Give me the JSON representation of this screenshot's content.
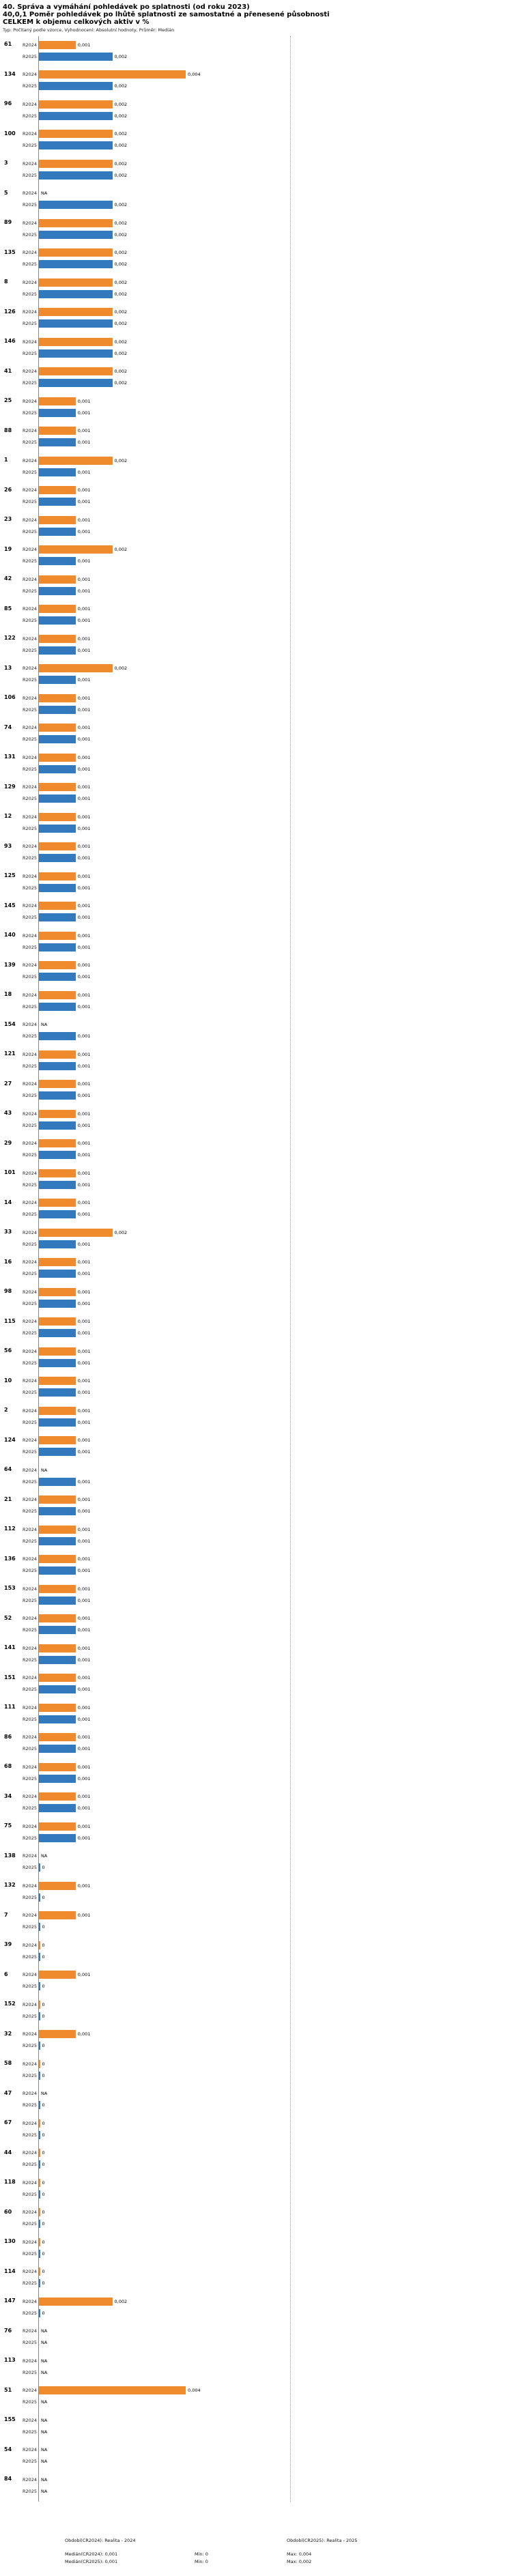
{
  "header": {
    "title_line1": "40. Správa a vymáhání pohledávek po splatnosti (od roku 2023)",
    "title_line2": "40,0,1 Poměr pohledávek po lhůtě splatnosti ze samostatné a přenesené působnosti",
    "title_line3": "CELKEM k objemu celkových aktiv v %",
    "subtitle": "Typ: Počítaný podle vzorce, Vyhodnocení: Absolutní hodnoty, Průměr: Medián"
  },
  "legend": {
    "period_2024": "Období(CR2024): Realita - 2024",
    "period_2025": "Období(CR2025): Realita - 2025",
    "median_2024_label": "Medián(CR2024): 0,001",
    "median_2025_label": "Medián(CR2025): 0,001",
    "min_2024": "Min: 0",
    "max_2024": "Max: 0,004",
    "min_2025": "Min: 0",
    "max_2025": "Max: 0,002"
  },
  "chart_data": {
    "type": "bar",
    "orientation": "horizontal",
    "title": "40. Správa a vymáhání pohledávek po splatnosti (od roku 2023)",
    "ylabel": "CELKEM k objemu celkových aktiv v %",
    "series": [
      "R2024",
      "R2025"
    ],
    "colors": {
      "R2024": "#EF8B2C",
      "R2025": "#3379BE"
    },
    "x_max": 0.004,
    "median_R2024": 0.001,
    "median_R2025": 0.001,
    "min_R2024": 0,
    "max_R2024": 0.004,
    "min_R2025": 0,
    "max_R2025": 0.002,
    "groups": [
      {
        "id": "61",
        "R2024": "0,001",
        "R2025": "0,002"
      },
      {
        "id": "134",
        "R2024": "0,004",
        "R2025": "0,002"
      },
      {
        "id": "96",
        "R2024": "0,002",
        "R2025": "0,002"
      },
      {
        "id": "100",
        "R2024": "0,002",
        "R2025": "0,002"
      },
      {
        "id": "3",
        "R2024": "0,002",
        "R2025": "0,002"
      },
      {
        "id": "5",
        "R2024": "NA",
        "R2025": "0,002"
      },
      {
        "id": "89",
        "R2024": "0,002",
        "R2025": "0,002"
      },
      {
        "id": "135",
        "R2024": "0,002",
        "R2025": "0,002"
      },
      {
        "id": "8",
        "R2024": "0,002",
        "R2025": "0,002"
      },
      {
        "id": "126",
        "R2024": "0,002",
        "R2025": "0,002"
      },
      {
        "id": "146",
        "R2024": "0,002",
        "R2025": "0,002"
      },
      {
        "id": "41",
        "R2024": "0,002",
        "R2025": "0,002"
      },
      {
        "id": "25",
        "R2024": "0,001",
        "R2025": "0,001"
      },
      {
        "id": "88",
        "R2024": "0,001",
        "R2025": "0,001"
      },
      {
        "id": "1",
        "R2024": "0,002",
        "R2025": "0,001"
      },
      {
        "id": "26",
        "R2024": "0,001",
        "R2025": "0,001"
      },
      {
        "id": "23",
        "R2024": "0,001",
        "R2025": "0,001"
      },
      {
        "id": "19",
        "R2024": "0,002",
        "R2025": "0,001"
      },
      {
        "id": "42",
        "R2024": "0,001",
        "R2025": "0,001"
      },
      {
        "id": "85",
        "R2024": "0,001",
        "R2025": "0,001"
      },
      {
        "id": "122",
        "R2024": "0,001",
        "R2025": "0,001"
      },
      {
        "id": "13",
        "R2024": "0,002",
        "R2025": "0,001"
      },
      {
        "id": "106",
        "R2024": "0,001",
        "R2025": "0,001"
      },
      {
        "id": "74",
        "R2024": "0,001",
        "R2025": "0,001"
      },
      {
        "id": "131",
        "R2024": "0,001",
        "R2025": "0,001"
      },
      {
        "id": "129",
        "R2024": "0,001",
        "R2025": "0,001"
      },
      {
        "id": "12",
        "R2024": "0,001",
        "R2025": "0,001"
      },
      {
        "id": "93",
        "R2024": "0,001",
        "R2025": "0,001"
      },
      {
        "id": "125",
        "R2024": "0,001",
        "R2025": "0,001"
      },
      {
        "id": "145",
        "R2024": "0,001",
        "R2025": "0,001"
      },
      {
        "id": "140",
        "R2024": "0,001",
        "R2025": "0,001"
      },
      {
        "id": "139",
        "R2024": "0,001",
        "R2025": "0,001"
      },
      {
        "id": "18",
        "R2024": "0,001",
        "R2025": "0,001"
      },
      {
        "id": "154",
        "R2024": "NA",
        "R2025": "0,001"
      },
      {
        "id": "121",
        "R2024": "0,001",
        "R2025": "0,001"
      },
      {
        "id": "27",
        "R2024": "0,001",
        "R2025": "0,001"
      },
      {
        "id": "43",
        "R2024": "0,001",
        "R2025": "0,001"
      },
      {
        "id": "29",
        "R2024": "0,001",
        "R2025": "0,001"
      },
      {
        "id": "101",
        "R2024": "0,001",
        "R2025": "0,001"
      },
      {
        "id": "14",
        "R2024": "0,001",
        "R2025": "0,001"
      },
      {
        "id": "33",
        "R2024": "0,002",
        "R2025": "0,001"
      },
      {
        "id": "16",
        "R2024": "0,001",
        "R2025": "0,001"
      },
      {
        "id": "98",
        "R2024": "0,001",
        "R2025": "0,001"
      },
      {
        "id": "115",
        "R2024": "0,001",
        "R2025": "0,001"
      },
      {
        "id": "56",
        "R2024": "0,001",
        "R2025": "0,001"
      },
      {
        "id": "10",
        "R2024": "0,001",
        "R2025": "0,001"
      },
      {
        "id": "2",
        "R2024": "0,001",
        "R2025": "0,001"
      },
      {
        "id": "124",
        "R2024": "0,001",
        "R2025": "0,001"
      },
      {
        "id": "64",
        "R2024": "NA",
        "R2025": "0,001"
      },
      {
        "id": "21",
        "R2024": "0,001",
        "R2025": "0,001"
      },
      {
        "id": "112",
        "R2024": "0,001",
        "R2025": "0,001"
      },
      {
        "id": "136",
        "R2024": "0,001",
        "R2025": "0,001"
      },
      {
        "id": "153",
        "R2024": "0,001",
        "R2025": "0,001"
      },
      {
        "id": "52",
        "R2024": "0,001",
        "R2025": "0,001"
      },
      {
        "id": "141",
        "R2024": "0,001",
        "R2025": "0,001"
      },
      {
        "id": "151",
        "R2024": "0,001",
        "R2025": "0,001"
      },
      {
        "id": "111",
        "R2024": "0,001",
        "R2025": "0,001"
      },
      {
        "id": "86",
        "R2024": "0,001",
        "R2025": "0,001"
      },
      {
        "id": "68",
        "R2024": "0,001",
        "R2025": "0,001"
      },
      {
        "id": "34",
        "R2024": "0,001",
        "R2025": "0,001"
      },
      {
        "id": "75",
        "R2024": "0,001",
        "R2025": "0,001"
      },
      {
        "id": "138",
        "R2024": "NA",
        "R2025": "0"
      },
      {
        "id": "132",
        "R2024": "0,001",
        "R2025": "0"
      },
      {
        "id": "7",
        "R2024": "0,001",
        "R2025": "0"
      },
      {
        "id": "39",
        "R2024": "0",
        "R2025": "0"
      },
      {
        "id": "6",
        "R2024": "0,001",
        "R2025": "0"
      },
      {
        "id": "152",
        "R2024": "0",
        "R2025": "0"
      },
      {
        "id": "32",
        "R2024": "0,001",
        "R2025": "0"
      },
      {
        "id": "58",
        "R2024": "0",
        "R2025": "0"
      },
      {
        "id": "47",
        "R2024": "NA",
        "R2025": "0"
      },
      {
        "id": "67",
        "R2024": "0",
        "R2025": "0"
      },
      {
        "id": "44",
        "R2024": "0",
        "R2025": "0"
      },
      {
        "id": "118",
        "R2024": "0",
        "R2025": "0"
      },
      {
        "id": "60",
        "R2024": "0",
        "R2025": "0"
      },
      {
        "id": "130",
        "R2024": "0",
        "R2025": "0"
      },
      {
        "id": "114",
        "R2024": "0",
        "R2025": "0"
      },
      {
        "id": "147",
        "R2024": "0,002",
        "R2025": "0"
      },
      {
        "id": "76",
        "R2024": "NA",
        "R2025": "NA"
      },
      {
        "id": "113",
        "R2024": "NA",
        "R2025": "NA"
      },
      {
        "id": "51",
        "R2024": "0,004",
        "R2025": "NA"
      },
      {
        "id": "155",
        "R2024": "NA",
        "R2025": "NA"
      },
      {
        "id": "54",
        "R2024": "NA",
        "R2025": "NA"
      },
      {
        "id": "84",
        "R2024": "NA",
        "R2025": "NA"
      }
    ]
  }
}
